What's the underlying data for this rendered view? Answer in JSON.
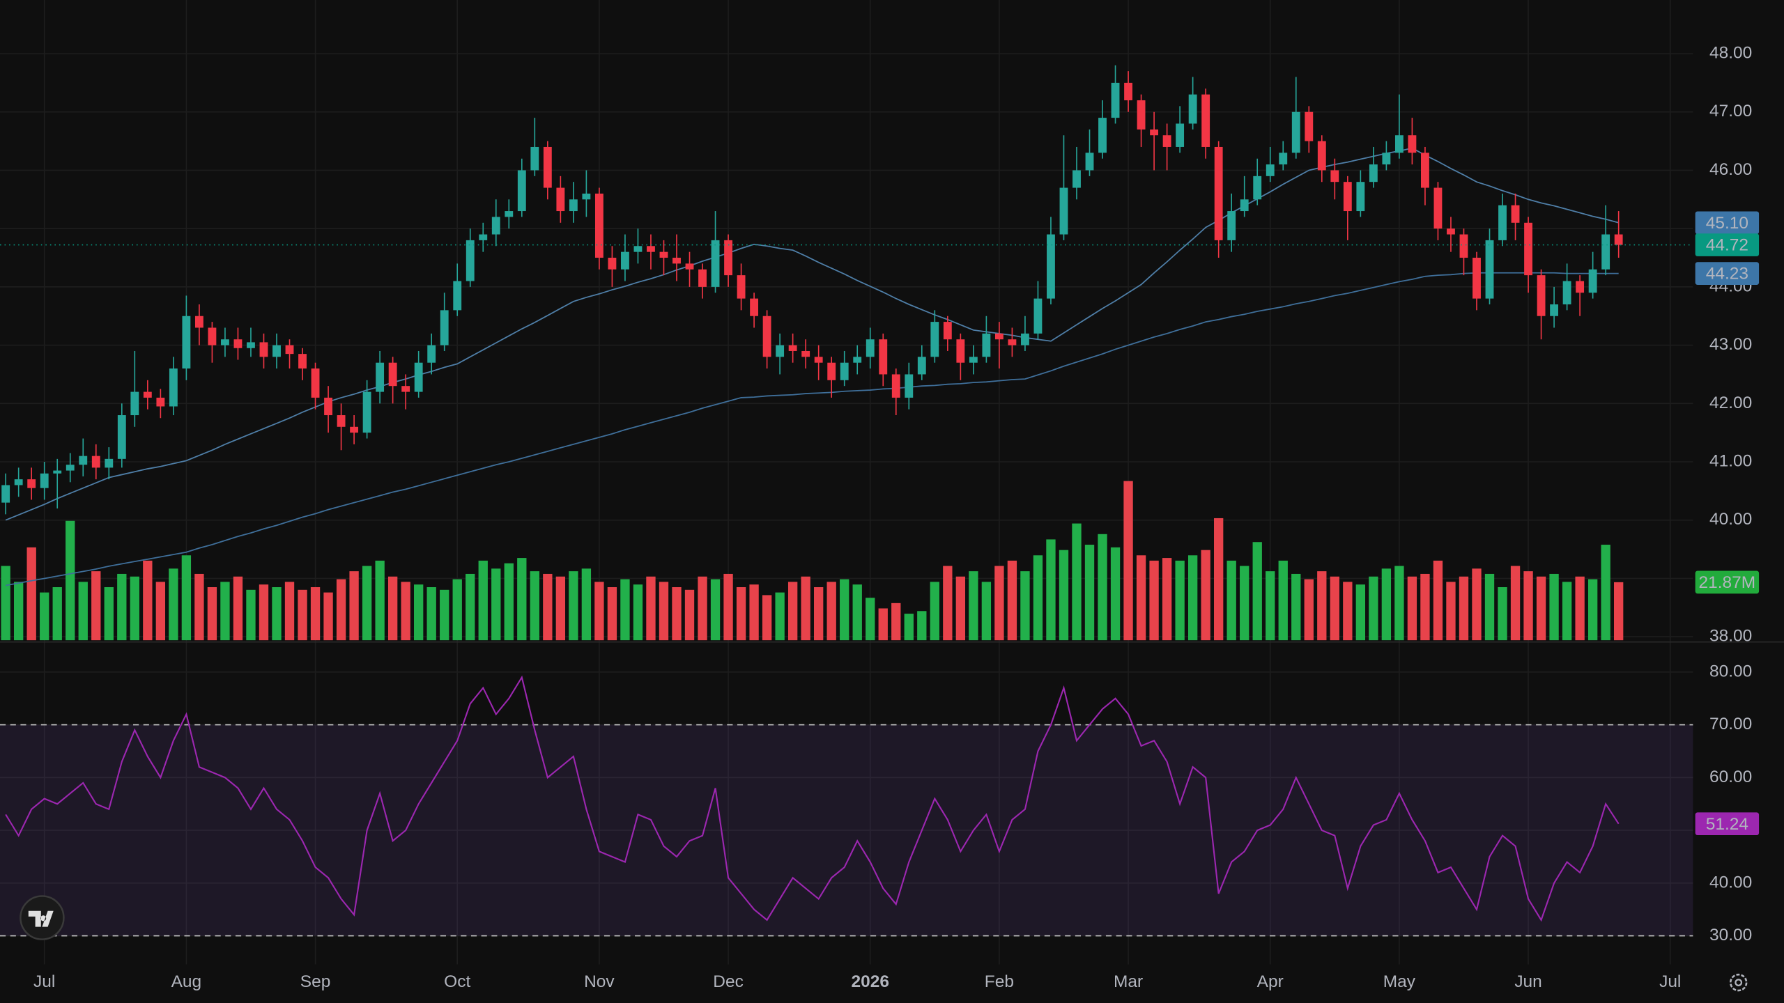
{
  "chart_data": {
    "type": "candlestick",
    "categories": [
      null,
      null,
      null,
      "Jul",
      null,
      null,
      null,
      null,
      null,
      null,
      null,
      null,
      null,
      null,
      "Aug",
      null,
      null,
      null,
      null,
      null,
      null,
      null,
      null,
      null,
      "Sep",
      null,
      null,
      null,
      null,
      null,
      null,
      null,
      null,
      null,
      null,
      "Oct",
      null,
      null,
      null,
      null,
      null,
      null,
      null,
      null,
      null,
      null,
      "Nov",
      null,
      null,
      null,
      null,
      null,
      null,
      null,
      null,
      null,
      "Dec",
      null,
      null,
      null,
      null,
      null,
      null,
      null,
      null,
      null,
      null,
      "2026",
      null,
      null,
      null,
      null,
      null,
      null,
      null,
      null,
      null,
      "Feb",
      null,
      null,
      null,
      null,
      null,
      null,
      null,
      null,
      null,
      "Mar",
      null,
      null,
      null,
      null,
      null,
      null,
      null,
      null,
      null,
      null,
      "Apr",
      null,
      null,
      null,
      null,
      null,
      null,
      null,
      null,
      null,
      "May",
      null,
      null,
      null,
      null,
      null,
      null,
      null,
      null,
      null,
      "Jun",
      null,
      null,
      null,
      null,
      null,
      null,
      null,
      null,
      null,
      null,
      "Jul"
    ],
    "open": [
      40.3,
      40.6,
      40.7,
      40.55,
      40.8,
      40.85,
      40.95,
      41.1,
      40.9,
      41.05,
      41.8,
      42.2,
      42.1,
      41.95,
      42.6,
      43.5,
      43.3,
      43,
      43.1,
      42.95,
      43.05,
      42.8,
      43,
      42.85,
      42.6,
      42.1,
      41.8,
      41.6,
      41.5,
      42.2,
      42.7,
      42.3,
      42.2,
      42.7,
      43,
      43.6,
      44.1,
      44.8,
      44.9,
      45.2,
      45.3,
      46,
      46.4,
      45.7,
      45.3,
      45.5,
      45.6,
      44.5,
      44.3,
      44.6,
      44.7,
      44.6,
      44.5,
      44.4,
      44.3,
      44,
      44.8,
      44.2,
      43.8,
      43.5,
      42.8,
      43,
      42.9,
      42.8,
      42.7,
      42.4,
      42.7,
      42.8,
      43.1,
      42.5,
      42.1,
      42.5,
      42.8,
      43.4,
      43.1,
      42.7,
      42.8,
      43.2,
      43.1,
      43,
      43.2,
      43.8,
      44.9,
      45.7,
      46,
      46.3,
      46.9,
      47.5,
      47.2,
      46.7,
      46.6,
      46.4,
      46.8,
      47.3,
      46.4,
      44.8,
      45.3,
      45.5,
      45.9,
      46.1,
      46.3,
      47,
      46.5,
      46,
      45.8,
      45.3,
      45.8,
      46.1,
      46.3,
      46.6,
      46.3,
      45.7,
      45,
      44.9,
      44.5,
      43.8,
      44.8,
      45.4,
      45.1,
      44.2,
      43.5,
      43.7,
      44.1,
      43.9,
      44.3,
      44.9,
      null,
      null,
      null,
      null
    ],
    "high": [
      40.8,
      40.9,
      40.9,
      41,
      41.05,
      41.15,
      41.4,
      41.3,
      41.25,
      42,
      42.9,
      42.4,
      42.25,
      42.8,
      43.85,
      43.7,
      43.4,
      43.3,
      43.3,
      43.3,
      43.2,
      43.2,
      43.1,
      42.95,
      42.7,
      42.3,
      42,
      41.8,
      42.4,
      42.9,
      42.8,
      42.5,
      42.9,
      43.2,
      43.9,
      44.4,
      45,
      45.1,
      45.5,
      45.5,
      46.2,
      46.9,
      46.5,
      45.9,
      45.8,
      46,
      45.7,
      44.7,
      44.9,
      45,
      44.9,
      44.8,
      44.9,
      44.6,
      44.4,
      45.3,
      44.9,
      44.4,
      43.9,
      43.6,
      43.2,
      43.2,
      43.1,
      43,
      42.8,
      42.9,
      43,
      43.3,
      43.2,
      42.6,
      42.7,
      43,
      43.6,
      43.5,
      43.2,
      43,
      43.5,
      43.4,
      43.3,
      43.5,
      44.1,
      45.2,
      46.6,
      46.4,
      46.7,
      47.2,
      47.8,
      47.7,
      47.3,
      47,
      46.8,
      47.1,
      47.6,
      47.4,
      46.5,
      45.6,
      45.9,
      46.2,
      46.4,
      46.5,
      47.6,
      47.1,
      46.6,
      46.2,
      45.9,
      46,
      46.4,
      46.5,
      47.3,
      46.9,
      46.4,
      45.8,
      45.2,
      45,
      44.6,
      45,
      45.6,
      45.6,
      45.2,
      44.3,
      44,
      44.4,
      44.2,
      44.6,
      45.4,
      45.3,
      null,
      null,
      null,
      null
    ],
    "low": [
      40.1,
      40.4,
      40.35,
      40.35,
      40.2,
      40.65,
      40.75,
      40.7,
      40.7,
      40.9,
      41.6,
      41.9,
      41.75,
      41.8,
      42.4,
      43,
      42.7,
      42.8,
      42.75,
      42.8,
      42.6,
      42.6,
      42.6,
      42.4,
      41.9,
      41.5,
      41.2,
      41.3,
      41.4,
      42,
      42,
      41.9,
      42.1,
      42.5,
      42.9,
      43.5,
      44,
      44.6,
      44.7,
      45,
      45.2,
      45.9,
      45.5,
      45.1,
      45.1,
      45.2,
      44.3,
      44,
      44.1,
      44.4,
      44.3,
      44.2,
      44.1,
      44,
      43.8,
      43.9,
      44,
      43.6,
      43.3,
      42.6,
      42.5,
      42.7,
      42.6,
      42.4,
      42.1,
      42.3,
      42.5,
      42.6,
      42.3,
      41.8,
      41.9,
      42.4,
      42.7,
      42.9,
      42.4,
      42.5,
      42.7,
      42.6,
      42.8,
      42.9,
      43.1,
      43.7,
      44.8,
      45.5,
      45.9,
      46.2,
      46.8,
      47,
      46.4,
      46,
      46,
      46.3,
      46.7,
      46.2,
      44.5,
      44.6,
      45.2,
      45.4,
      45.8,
      46,
      46.2,
      46.3,
      45.8,
      45.5,
      44.8,
      45.2,
      45.7,
      46,
      46.2,
      46.1,
      45.4,
      44.8,
      44.6,
      44.2,
      43.6,
      43.7,
      44.7,
      44.8,
      43.9,
      43.1,
      43.3,
      43.6,
      43.5,
      43.8,
      44.2,
      44.5,
      null,
      null,
      null,
      null
    ],
    "close": [
      40.6,
      40.7,
      40.55,
      40.8,
      40.85,
      40.95,
      41.1,
      40.9,
      41.05,
      41.8,
      42.2,
      42.1,
      41.95,
      42.6,
      43.5,
      43.3,
      43,
      43.1,
      42.95,
      43.05,
      42.8,
      43,
      42.85,
      42.6,
      42.1,
      41.8,
      41.6,
      41.5,
      42.2,
      42.7,
      42.3,
      42.2,
      42.7,
      43,
      43.6,
      44.1,
      44.8,
      44.9,
      45.2,
      45.3,
      46,
      46.4,
      45.7,
      45.3,
      45.5,
      45.6,
      44.5,
      44.3,
      44.6,
      44.7,
      44.6,
      44.5,
      44.4,
      44.3,
      44,
      44.8,
      44.2,
      43.8,
      43.5,
      42.8,
      43,
      42.9,
      42.8,
      42.7,
      42.4,
      42.7,
      42.8,
      43.1,
      42.5,
      42.1,
      42.5,
      42.8,
      43.4,
      43.1,
      42.7,
      42.8,
      43.2,
      43.1,
      43,
      43.2,
      43.8,
      44.9,
      45.7,
      46,
      46.3,
      46.9,
      47.5,
      47.2,
      46.7,
      46.6,
      46.4,
      46.8,
      47.3,
      46.4,
      44.8,
      45.3,
      45.5,
      45.9,
      46.1,
      46.3,
      47,
      46.5,
      46,
      45.8,
      45.3,
      45.8,
      46.1,
      46.3,
      46.6,
      46.3,
      45.7,
      45,
      44.9,
      44.5,
      43.8,
      44.8,
      45.4,
      45.1,
      44.2,
      43.5,
      43.7,
      44.1,
      43.9,
      44.3,
      44.9,
      44.72,
      null,
      null,
      null,
      null
    ],
    "up_color": "#26a69a",
    "down_color": "#f23645",
    "ylim": [
      37.94,
      48.92
    ],
    "yticks": [
      {
        "value": 38,
        "label": "38.00"
      },
      {
        "value": 39,
        "label": "39.00"
      },
      {
        "value": 40,
        "label": "40.00"
      },
      {
        "value": 41,
        "label": "41.00"
      },
      {
        "value": 42,
        "label": "42.00"
      },
      {
        "value": 43,
        "label": "43.00"
      },
      {
        "value": 44,
        "label": "44.00"
      },
      {
        "value": 45,
        "label": "45.00"
      },
      {
        "value": 46,
        "label": "46.00"
      },
      {
        "value": 47,
        "label": "47.00"
      },
      {
        "value": 48,
        "label": "48.00"
      }
    ],
    "grid": true,
    "moving_averages": [
      {
        "color": "#4f7fa8",
        "values": [
          40,
          40.09,
          40.18,
          40.27,
          40.37,
          40.46,
          40.55,
          40.64,
          40.73,
          40.78,
          40.83,
          40.88,
          40.92,
          40.97,
          41.02,
          41.11,
          41.2,
          41.3,
          41.39,
          41.48,
          41.57,
          41.66,
          41.75,
          41.85,
          41.94,
          42.03,
          42.1,
          42.16,
          42.23,
          42.29,
          42.36,
          42.42,
          42.49,
          42.55,
          42.62,
          42.68,
          42.8,
          42.92,
          43.04,
          43.16,
          43.28,
          43.39,
          43.51,
          43.63,
          43.75,
          43.82,
          43.88,
          43.95,
          44.01,
          44.08,
          44.14,
          44.21,
          44.29,
          44.36,
          44.44,
          44.51,
          44.58,
          44.66,
          44.73,
          44.7,
          44.66,
          44.63,
          44.53,
          44.42,
          44.32,
          44.22,
          44.11,
          44.01,
          43.91,
          43.8,
          43.7,
          43.61,
          43.52,
          43.44,
          43.35,
          43.26,
          43.23,
          43.2,
          43.17,
          43.13,
          43.1,
          43.07,
          43.21,
          43.35,
          43.49,
          43.63,
          43.76,
          43.9,
          44.04,
          44.24,
          44.43,
          44.63,
          44.82,
          45.02,
          45.14,
          45.27,
          45.39,
          45.51,
          45.63,
          45.76,
          45.88,
          46,
          46.05,
          46.1,
          46.14,
          46.19,
          46.24,
          46.29,
          46.33,
          46.38,
          46.26,
          46.15,
          46.03,
          45.92,
          45.8,
          45.73,
          45.65,
          45.58,
          45.5,
          45.44,
          45.39,
          45.33,
          45.27,
          45.21,
          45.16,
          45.1,
          null,
          null,
          null,
          null
        ]
      },
      {
        "color": "#3f6f9a",
        "values": [
          38.88,
          38.92,
          38.96,
          39,
          39.04,
          39.08,
          39.12,
          39.16,
          39.21,
          39.25,
          39.29,
          39.33,
          39.37,
          39.41,
          39.45,
          39.52,
          39.58,
          39.65,
          39.72,
          39.78,
          39.85,
          39.91,
          39.98,
          40.05,
          40.11,
          40.18,
          40.24,
          40.3,
          40.36,
          40.42,
          40.48,
          40.53,
          40.59,
          40.65,
          40.71,
          40.77,
          40.83,
          40.89,
          40.95,
          41,
          41.06,
          41.12,
          41.18,
          41.24,
          41.3,
          41.36,
          41.42,
          41.48,
          41.55,
          41.61,
          41.67,
          41.73,
          41.79,
          41.85,
          41.92,
          41.98,
          42.04,
          42.1,
          42.11,
          42.13,
          42.14,
          42.15,
          42.17,
          42.18,
          42.19,
          42.21,
          42.22,
          42.23,
          42.25,
          42.26,
          42.28,
          42.3,
          42.31,
          42.33,
          42.34,
          42.36,
          42.37,
          42.39,
          42.41,
          42.42,
          42.49,
          42.56,
          42.64,
          42.71,
          42.78,
          42.85,
          42.93,
          43,
          43.07,
          43.14,
          43.2,
          43.27,
          43.33,
          43.4,
          43.44,
          43.49,
          43.53,
          43.58,
          43.62,
          43.66,
          43.71,
          43.75,
          43.8,
          43.85,
          43.89,
          43.94,
          43.99,
          44.04,
          44.09,
          44.13,
          44.18,
          44.2,
          44.21,
          44.23,
          44.24,
          44.24,
          44.24,
          44.24,
          44.24,
          44.24,
          44.24,
          44.23,
          44.23,
          44.23,
          44.23,
          44.23,
          null,
          null,
          null,
          null
        ]
      }
    ],
    "price_markers": [
      {
        "value": 45.1,
        "label": "45.10",
        "color": "#3d76a8"
      },
      {
        "value": 44.72,
        "label": "44.72",
        "color": "#089981"
      },
      {
        "value": 44.23,
        "label": "44.23",
        "color": "#3d76a8"
      }
    ],
    "volume": {
      "up_color": "#22b04b",
      "down_color": "#e8434b",
      "values": [
        28,
        22,
        35,
        18,
        20,
        45,
        22,
        26,
        20,
        25,
        24,
        30,
        22,
        27,
        32,
        25,
        20,
        22,
        24,
        19,
        21,
        20,
        22,
        19,
        20,
        18,
        23,
        26,
        28,
        30,
        24,
        22,
        21,
        20,
        19,
        23,
        25,
        30,
        27,
        29,
        31,
        26,
        25,
        24,
        26,
        27,
        22,
        20,
        23,
        21,
        24,
        22,
        20,
        19,
        24,
        23,
        25,
        20,
        21,
        17,
        18,
        22,
        24,
        20,
        22,
        23,
        21,
        16,
        12,
        14,
        10,
        11,
        22,
        28,
        24,
        26,
        22,
        28,
        30,
        26,
        32,
        38,
        34,
        44,
        36,
        40,
        35,
        60,
        32,
        30,
        31,
        30,
        32,
        34,
        46,
        30,
        28,
        37,
        26,
        30,
        25,
        23,
        26,
        24,
        22,
        21,
        24,
        27,
        28,
        24,
        25,
        30,
        22,
        24,
        27,
        25,
        20,
        28,
        26,
        24,
        25,
        22,
        24,
        23,
        36,
        21.87,
        null,
        null,
        null,
        null
      ],
      "marker": {
        "value": 21.87,
        "label": "21.87M",
        "color": "#22ab3c"
      }
    },
    "rsi": {
      "color": "#9c27b0",
      "values": [
        53,
        49,
        54,
        56,
        55,
        57,
        59,
        55,
        54,
        63,
        69,
        64,
        60,
        67,
        72,
        62,
        61,
        60,
        58,
        54,
        58,
        54,
        52,
        48,
        43,
        41,
        37,
        34,
        50,
        57,
        48,
        50,
        55,
        59,
        63,
        67,
        74,
        77,
        72,
        75,
        79,
        69,
        60,
        62,
        64,
        54,
        46,
        45,
        44,
        53,
        52,
        47,
        45,
        48,
        49,
        58,
        41,
        38,
        35,
        33,
        37,
        41,
        39,
        37,
        41,
        43,
        48,
        44,
        39,
        36,
        44,
        50,
        56,
        52,
        46,
        50,
        53,
        46,
        52,
        54,
        65,
        70,
        77,
        67,
        70,
        73,
        75,
        72,
        66,
        67,
        63,
        55,
        62,
        60,
        38,
        44,
        46,
        50,
        51,
        54,
        60,
        55,
        50,
        49,
        39,
        47,
        51,
        52,
        57,
        52,
        48,
        42,
        43,
        39,
        35,
        45,
        49,
        47,
        37,
        33,
        40,
        44,
        42,
        47,
        55,
        51.24,
        null,
        null,
        null,
        null
      ],
      "marker_color": "#9c27b0",
      "ylim": [
        24.6,
        85.6
      ],
      "yticks": [
        {
          "value": 30,
          "label": "30.00"
        },
        {
          "value": 40,
          "label": "40.00"
        },
        {
          "value": 50,
          "label": "50.00"
        },
        {
          "value": 60,
          "label": "60.00"
        },
        {
          "value": 70,
          "label": "70.00"
        },
        {
          "value": 80,
          "label": "80.00"
        }
      ],
      "band": [
        30,
        70
      ],
      "band_color": "#7e57c2"
    }
  }
}
